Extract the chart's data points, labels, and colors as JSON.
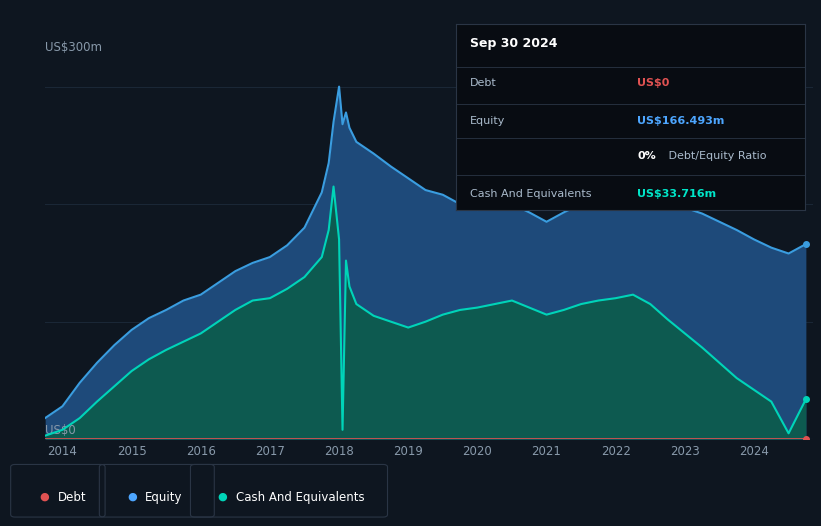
{
  "bg_color": "#0e1620",
  "plot_bg_color": "#0e1620",
  "grid_color": "#1e2d3d",
  "title_box": {
    "date": "Sep 30 2024",
    "debt_label": "Debt",
    "debt_value": "US$0",
    "debt_color": "#e05252",
    "equity_label": "Equity",
    "equity_value": "US$166.493m",
    "equity_color": "#4da6ff",
    "ratio_value": "0%",
    "ratio_label": " Debt/Equity Ratio",
    "cash_label": "Cash And Equivalents",
    "cash_value": "US$33.716m",
    "cash_color": "#00e5c8",
    "box_bg": "#080c12",
    "box_border": "#2a3545"
  },
  "ylabel": "US$300m",
  "ylabel0": "US$0",
  "equity_color": "#3a9de0",
  "equity_fill_top": "#1e4a7a",
  "equity_fill_bot": "#0e1e35",
  "cash_color": "#00d4b8",
  "cash_fill_top": "#0d5a50",
  "cash_fill_bot": "#083530",
  "debt_color": "#e05252",
  "legend_debt_color": "#e05252",
  "legend_equity_color": "#4da6ff",
  "legend_cash_color": "#00d4b8",
  "legend": {
    "debt": "Debt",
    "equity": "Equity",
    "cash": "Cash And Equivalents"
  },
  "years": [
    2013.75,
    2014.0,
    2014.25,
    2014.5,
    2014.75,
    2015.0,
    2015.25,
    2015.5,
    2015.75,
    2016.0,
    2016.25,
    2016.5,
    2016.75,
    2017.0,
    2017.25,
    2017.5,
    2017.75,
    2017.85,
    2017.92,
    2018.0,
    2018.05,
    2018.1,
    2018.15,
    2018.25,
    2018.5,
    2018.75,
    2019.0,
    2019.25,
    2019.5,
    2019.75,
    2020.0,
    2020.25,
    2020.5,
    2020.75,
    2021.0,
    2021.25,
    2021.5,
    2021.75,
    2022.0,
    2022.25,
    2022.5,
    2022.75,
    2023.0,
    2023.25,
    2023.5,
    2023.75,
    2024.0,
    2024.25,
    2024.5,
    2024.75
  ],
  "equity": [
    18,
    28,
    48,
    65,
    80,
    93,
    103,
    110,
    118,
    123,
    133,
    143,
    150,
    155,
    165,
    180,
    210,
    235,
    270,
    300,
    268,
    278,
    265,
    253,
    243,
    232,
    222,
    212,
    208,
    200,
    195,
    197,
    200,
    193,
    185,
    193,
    200,
    207,
    215,
    228,
    220,
    207,
    197,
    192,
    185,
    178,
    170,
    163,
    158,
    166
  ],
  "cash": [
    3,
    8,
    18,
    32,
    45,
    58,
    68,
    76,
    83,
    90,
    100,
    110,
    118,
    120,
    128,
    138,
    155,
    178,
    215,
    170,
    8,
    152,
    130,
    115,
    105,
    100,
    95,
    100,
    106,
    110,
    112,
    115,
    118,
    112,
    106,
    110,
    115,
    118,
    120,
    123,
    115,
    102,
    90,
    78,
    65,
    52,
    42,
    32,
    5,
    34
  ],
  "debt": [
    0,
    0,
    0,
    0,
    0,
    0,
    0,
    0,
    0,
    0,
    0,
    0,
    0,
    0,
    0,
    0,
    0,
    0,
    0,
    0,
    0,
    0,
    0,
    0,
    0,
    0,
    0,
    0,
    0,
    0,
    0,
    0,
    0,
    0,
    0,
    0,
    0,
    0,
    0,
    0,
    0,
    0,
    0,
    0,
    0,
    0,
    0,
    0,
    0,
    0
  ],
  "xlim": [
    2013.75,
    2024.85
  ],
  "ylim": [
    0,
    320
  ],
  "xticks": [
    2014,
    2015,
    2016,
    2017,
    2018,
    2019,
    2020,
    2021,
    2022,
    2023,
    2024
  ]
}
